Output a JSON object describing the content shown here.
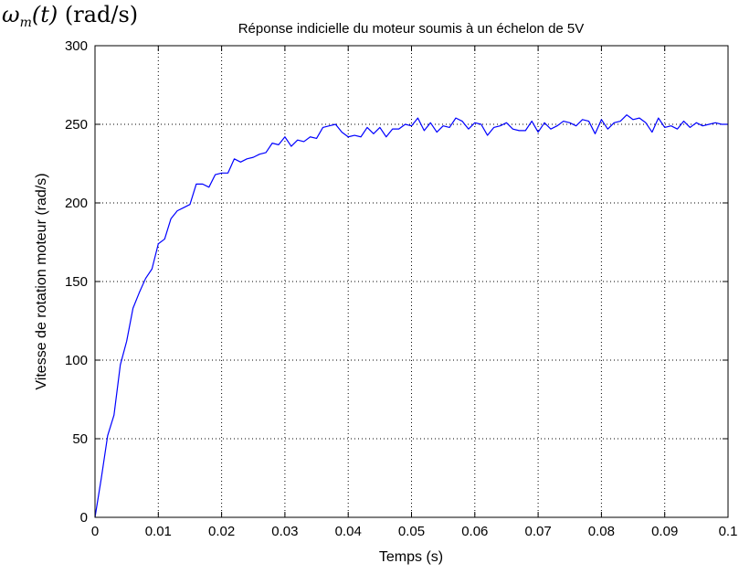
{
  "corner_label": {
    "symbol": "ω",
    "subscript": "m",
    "argument": "(t)",
    "unit": "(rad/s)"
  },
  "chart_data": {
    "type": "line",
    "title": "Réponse indicielle du moteur soumis à un échelon de 5V",
    "xlabel": "Temps (s)",
    "ylabel": "Vitesse de rotation moteur (rad/s)",
    "xlim": [
      0,
      0.1
    ],
    "ylim": [
      0,
      300
    ],
    "xticks": [
      0,
      0.01,
      0.02,
      0.03,
      0.04,
      0.05,
      0.06,
      0.07,
      0.08,
      0.09,
      0.1
    ],
    "xtick_labels": [
      "0",
      "0.01",
      "0.02",
      "0.03",
      "0.04",
      "0.05",
      "0.06",
      "0.07",
      "0.08",
      "0.09",
      "0.1"
    ],
    "yticks": [
      0,
      50,
      100,
      150,
      200,
      250,
      300
    ],
    "ytick_labels": [
      "0",
      "50",
      "100",
      "150",
      "200",
      "250",
      "300"
    ],
    "grid": true,
    "line_color": "#0000ff",
    "series": [
      {
        "x": [
          0,
          0.001,
          0.002,
          0.003,
          0.004,
          0.005,
          0.006,
          0.007,
          0.008,
          0.009,
          0.01,
          0.011,
          0.012,
          0.013,
          0.014,
          0.015,
          0.016,
          0.017,
          0.018,
          0.019,
          0.02,
          0.021,
          0.022,
          0.023,
          0.024,
          0.025,
          0.026,
          0.027,
          0.028,
          0.029,
          0.03,
          0.031,
          0.032,
          0.033,
          0.034,
          0.035,
          0.036,
          0.037,
          0.038,
          0.039,
          0.04,
          0.041,
          0.042,
          0.043,
          0.044,
          0.045,
          0.046,
          0.047,
          0.048,
          0.049,
          0.05,
          0.051,
          0.052,
          0.053,
          0.054,
          0.055,
          0.056,
          0.057,
          0.058,
          0.059,
          0.06,
          0.061,
          0.062,
          0.063,
          0.064,
          0.065,
          0.066,
          0.067,
          0.068,
          0.069,
          0.07,
          0.071,
          0.072,
          0.073,
          0.074,
          0.075,
          0.076,
          0.077,
          0.078,
          0.079,
          0.08,
          0.081,
          0.082,
          0.083,
          0.084,
          0.085,
          0.086,
          0.087,
          0.088,
          0.089,
          0.09,
          0.091,
          0.092,
          0.093,
          0.094,
          0.095,
          0.096,
          0.097,
          0.098,
          0.099,
          0.1
        ],
        "y": [
          0,
          25,
          52,
          65,
          97,
          112,
          133,
          143,
          152,
          158,
          174,
          177,
          190,
          195,
          197,
          199,
          212,
          212,
          210,
          218,
          219,
          219,
          228,
          226,
          228,
          229,
          231,
          232,
          238,
          237,
          242,
          236,
          240,
          239,
          242,
          241,
          248,
          249,
          250,
          245,
          242,
          243,
          242,
          248,
          244,
          248,
          242,
          247,
          247,
          250,
          249,
          254,
          246,
          251,
          245,
          249,
          248,
          254,
          252,
          247,
          251,
          250,
          243,
          248,
          249,
          251,
          247,
          246,
          246,
          252,
          245,
          251,
          247,
          249,
          252,
          251,
          249,
          253,
          252,
          244,
          253,
          247,
          251,
          252,
          256,
          253,
          254,
          251,
          245,
          254,
          248,
          249,
          247,
          252,
          248,
          251,
          249,
          250,
          251,
          250,
          250
        ]
      }
    ]
  }
}
